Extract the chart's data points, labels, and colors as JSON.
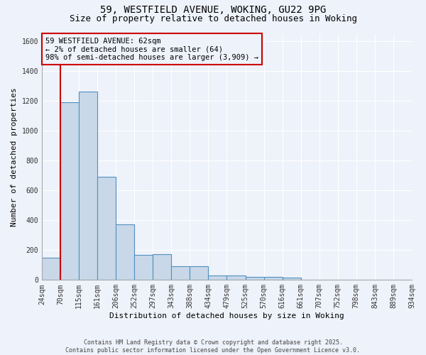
{
  "title_line1": "59, WESTFIELD AVENUE, WOKING, GU22 9PG",
  "title_line2": "Size of property relative to detached houses in Woking",
  "xlabel": "Distribution of detached houses by size in Woking",
  "ylabel": "Number of detached properties",
  "categories": [
    "24sqm",
    "70sqm",
    "115sqm",
    "161sqm",
    "206sqm",
    "252sqm",
    "297sqm",
    "343sqm",
    "388sqm",
    "434sqm",
    "479sqm",
    "525sqm",
    "570sqm",
    "616sqm",
    "661sqm",
    "707sqm",
    "752sqm",
    "798sqm",
    "843sqm",
    "889sqm",
    "934sqm"
  ],
  "bar_values": [
    150,
    1190,
    1260,
    690,
    375,
    170,
    175,
    90,
    90,
    30,
    30,
    20,
    20,
    15,
    0,
    0,
    0,
    0,
    0,
    0
  ],
  "bar_color": "#c8d8e8",
  "bar_edge_color": "#5090c0",
  "ylim": [
    0,
    1650
  ],
  "yticks": [
    0,
    200,
    400,
    600,
    800,
    1000,
    1200,
    1400,
    1600
  ],
  "property_line_x": 1.0,
  "property_line_color": "#cc0000",
  "annotation_title": "59 WESTFIELD AVENUE: 62sqm",
  "annotation_line2": "← 2% of detached houses are smaller (64)",
  "annotation_line3": "98% of semi-detached houses are larger (3,909) →",
  "annotation_box_color": "#cc0000",
  "annotation_text_color": "#000000",
  "background_color": "#eef2fa",
  "grid_color": "#ffffff",
  "footer_line1": "Contains HM Land Registry data © Crown copyright and database right 2025.",
  "footer_line2": "Contains public sector information licensed under the Open Government Licence v3.0.",
  "title_fontsize": 10,
  "subtitle_fontsize": 9,
  "tick_fontsize": 7,
  "axis_label_fontsize": 8,
  "annotation_fontsize": 7.5
}
